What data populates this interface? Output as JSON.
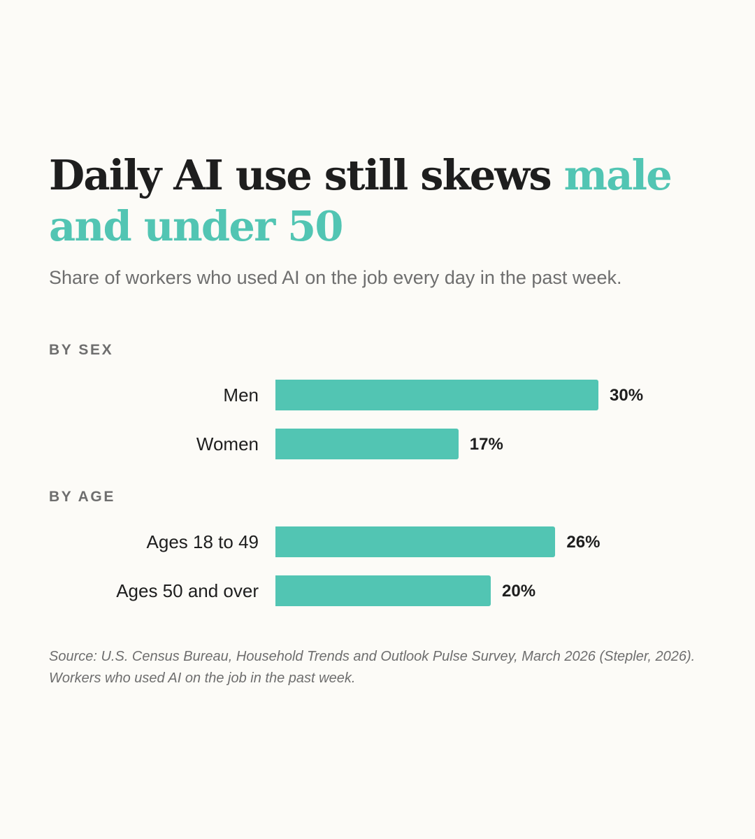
{
  "chart_data": {
    "type": "bar",
    "orientation": "horizontal",
    "title_lead": "Daily AI use still skews",
    "title_highlight": "male and under 50",
    "subtitle": "Share of workers who used AI on the job every day in the past week.",
    "groups": [
      {
        "label": "BY SEX",
        "categories": [
          "Men",
          "Women"
        ],
        "values": [
          30,
          17
        ],
        "value_labels": [
          "30%",
          "17%"
        ]
      },
      {
        "label": "BY AGE",
        "categories": [
          "Ages 18 to 49",
          "Ages 50 and over"
        ],
        "values": [
          26,
          20
        ],
        "value_labels": [
          "26%",
          "20%"
        ]
      }
    ],
    "xlim": [
      0,
      30
    ],
    "grid": false,
    "bar_color": "#52c5b3",
    "accent_color": "#52c5b3",
    "source": "Source: U.S. Census Bureau, Household Trends and Outlook Pulse Survey, March 2026 (Stepler, 2026). Workers who used AI on the job in the past week."
  }
}
